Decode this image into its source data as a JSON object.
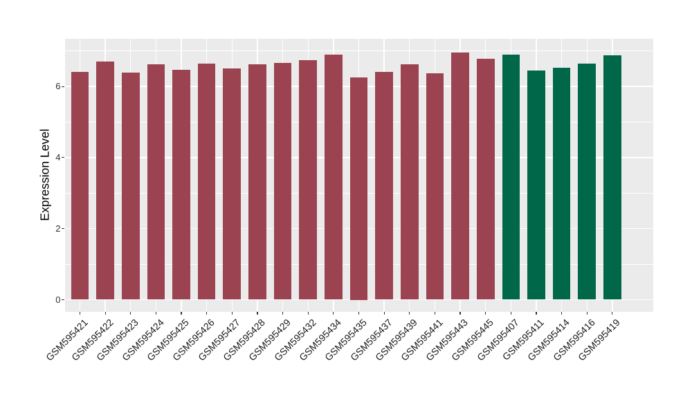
{
  "chart_data": {
    "type": "bar",
    "title": "",
    "xlabel": "",
    "ylabel": "Expression Level",
    "ylim": [
      0,
      7.35
    ],
    "yticks": [
      0,
      2,
      4,
      6
    ],
    "yticks_minor": [
      1,
      3,
      5,
      7
    ],
    "grid": true,
    "legend_position": "none",
    "panel_background": "#EBEBEB",
    "grid_color": "#FFFFFF",
    "tick_color": "#333333",
    "axis_text_color": "#303030",
    "group_colors": [
      "#9B4350",
      "#006848"
    ],
    "bars": [
      {
        "label": "GSM595421",
        "value": 6.42,
        "group": 0
      },
      {
        "label": "GSM595422",
        "value": 6.71,
        "group": 0
      },
      {
        "label": "GSM595423",
        "value": 6.4,
        "group": 0
      },
      {
        "label": "GSM595424",
        "value": 6.62,
        "group": 0
      },
      {
        "label": "GSM595425",
        "value": 6.46,
        "group": 0
      },
      {
        "label": "GSM595426",
        "value": 6.65,
        "group": 0
      },
      {
        "label": "GSM595427",
        "value": 6.5,
        "group": 0
      },
      {
        "label": "GSM595428",
        "value": 6.62,
        "group": 0
      },
      {
        "label": "GSM595429",
        "value": 6.66,
        "group": 0
      },
      {
        "label": "GSM595432",
        "value": 6.75,
        "group": 0
      },
      {
        "label": "GSM595434",
        "value": 6.89,
        "group": 0
      },
      {
        "label": "GSM595435",
        "value": 6.25,
        "group": 0
      },
      {
        "label": "GSM595437",
        "value": 6.42,
        "group": 0
      },
      {
        "label": "GSM595439",
        "value": 6.62,
        "group": 0
      },
      {
        "label": "GSM595441",
        "value": 6.38,
        "group": 0
      },
      {
        "label": "GSM595443",
        "value": 6.96,
        "group": 0
      },
      {
        "label": "GSM595445",
        "value": 6.78,
        "group": 0
      },
      {
        "label": "GSM595407",
        "value": 6.89,
        "group": 1
      },
      {
        "label": "GSM595411",
        "value": 6.45,
        "group": 1
      },
      {
        "label": "GSM595414",
        "value": 6.52,
        "group": 1
      },
      {
        "label": "GSM595416",
        "value": 6.65,
        "group": 1
      },
      {
        "label": "GSM595419",
        "value": 6.87,
        "group": 1
      }
    ]
  }
}
